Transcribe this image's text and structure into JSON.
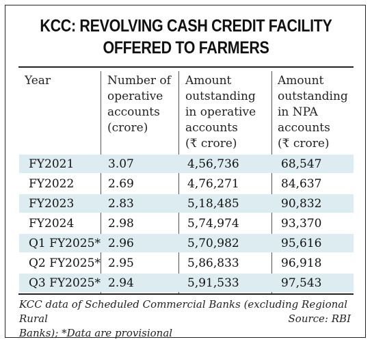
{
  "title": {
    "line1": "KCC: REVOLVING CASH CREDIT FACILITY",
    "line2": "OFFERED TO FARMERS"
  },
  "table": {
    "headers": [
      "Year",
      "Number of\noperative\naccounts\n(crore)",
      "Amount\noutstanding\nin operative\naccounts\n(₹ crore)",
      "Amount\noutstanding\nin NPA\naccounts\n(₹ crore)"
    ],
    "rows": [
      [
        "FY2021",
        "3.07",
        "4,56,736",
        "68,547"
      ],
      [
        "FY2022",
        "2.69",
        "4,76,271",
        "84,637"
      ],
      [
        "FY2023",
        "2.83",
        "5,18,485",
        "90,832"
      ],
      [
        "FY2024",
        "2.98",
        "5,74,974",
        "93,370"
      ],
      [
        "Q1 FY2025*",
        "2.96",
        "5,70,982",
        "95,616"
      ],
      [
        "Q2 FY2025*",
        "2.95",
        "5,86,833",
        "96,918"
      ],
      [
        "Q3 FY2025*",
        "2.94",
        "5,91,533",
        "97,543"
      ]
    ]
  },
  "footnote": {
    "line1": "KCC data of Scheduled Commercial Banks (excluding Regional Rural",
    "line2": "Banks); *Data are provisional",
    "source": "Source: RBI"
  },
  "colors": {
    "row_shade": "#dcecf0"
  }
}
